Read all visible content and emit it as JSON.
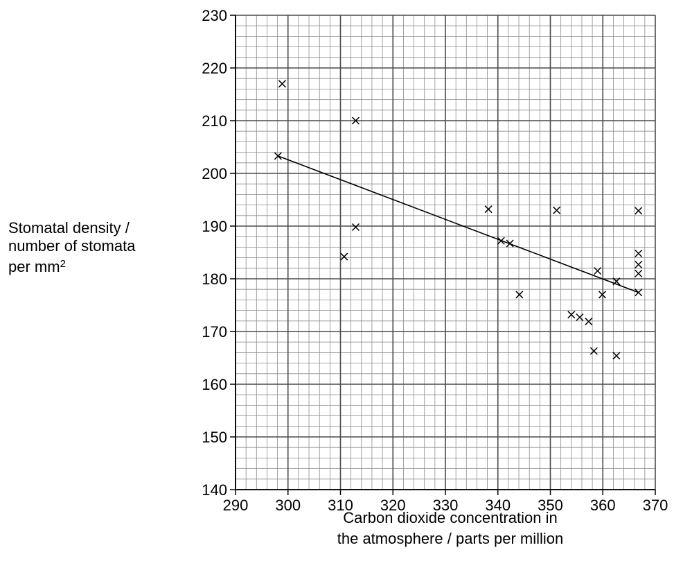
{
  "chart_data": {
    "type": "scatter",
    "title": "",
    "xlabel_lines": [
      "Carbon dioxide concentration in",
      "the atmosphere / parts per million"
    ],
    "ylabel_lines": [
      "Stomatal density /",
      "number of stomata",
      "per mm"
    ],
    "ylabel_superscript": "2",
    "xlim": [
      290,
      370
    ],
    "ylim": [
      140,
      230
    ],
    "x_ticks": [
      290,
      300,
      310,
      320,
      330,
      340,
      350,
      360,
      370
    ],
    "y_ticks": [
      140,
      150,
      160,
      170,
      180,
      190,
      200,
      210,
      220,
      230
    ],
    "grid": true,
    "marker": "x",
    "points": [
      {
        "x": 298.1,
        "y": 203.3
      },
      {
        "x": 298.9,
        "y": 217.0
      },
      {
        "x": 310.7,
        "y": 184.2
      },
      {
        "x": 312.9,
        "y": 210.0
      },
      {
        "x": 312.9,
        "y": 189.8
      },
      {
        "x": 338.2,
        "y": 193.2
      },
      {
        "x": 340.6,
        "y": 187.2
      },
      {
        "x": 342.3,
        "y": 186.7
      },
      {
        "x": 344.1,
        "y": 177.0
      },
      {
        "x": 351.2,
        "y": 193.0
      },
      {
        "x": 354.0,
        "y": 173.2
      },
      {
        "x": 355.6,
        "y": 172.7
      },
      {
        "x": 357.3,
        "y": 171.9
      },
      {
        "x": 358.3,
        "y": 166.3
      },
      {
        "x": 359.0,
        "y": 181.5
      },
      {
        "x": 359.9,
        "y": 177.0
      },
      {
        "x": 362.6,
        "y": 179.5
      },
      {
        "x": 362.6,
        "y": 165.4
      },
      {
        "x": 366.8,
        "y": 192.9
      },
      {
        "x": 366.8,
        "y": 184.8
      },
      {
        "x": 366.8,
        "y": 182.7
      },
      {
        "x": 366.8,
        "y": 181.0
      },
      {
        "x": 366.8,
        "y": 177.4
      }
    ],
    "trendline": {
      "x": [
        298.1,
        366.8
      ],
      "y": [
        203.3,
        177.4
      ]
    },
    "colors": {
      "line": "#000000",
      "grid_minor": "#8c8c8c",
      "grid_major": "#4a4a4a"
    }
  }
}
